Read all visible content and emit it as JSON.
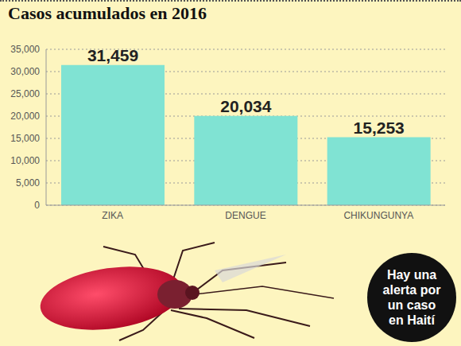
{
  "chart_data": {
    "type": "bar",
    "title": "Casos acumulados en 2016",
    "categories": [
      "ZIKA",
      "DENGUE",
      "CHIKUNGUNYA"
    ],
    "values": [
      31459,
      20034,
      15253
    ],
    "value_labels": [
      "31,459",
      "20,034",
      "15,253"
    ],
    "color": "#80e3d3",
    "ylim": [
      0,
      35000
    ],
    "yticks": [
      0,
      {
        "value": 5000,
        "label": "5,000"
      },
      {
        "value": 10000,
        "label": "10,000"
      },
      {
        "value": 15000,
        "label": "15,000"
      },
      {
        "value": 20000,
        "label": "20,000"
      },
      {
        "value": 25000,
        "label": "25,000"
      },
      {
        "value": 30000,
        "label": "30,000"
      },
      {
        "value": 35000,
        "label": "35,000"
      }
    ],
    "grid": true,
    "data_labels": true,
    "annotation": "Hay una alerta por un caso en Haití"
  }
}
